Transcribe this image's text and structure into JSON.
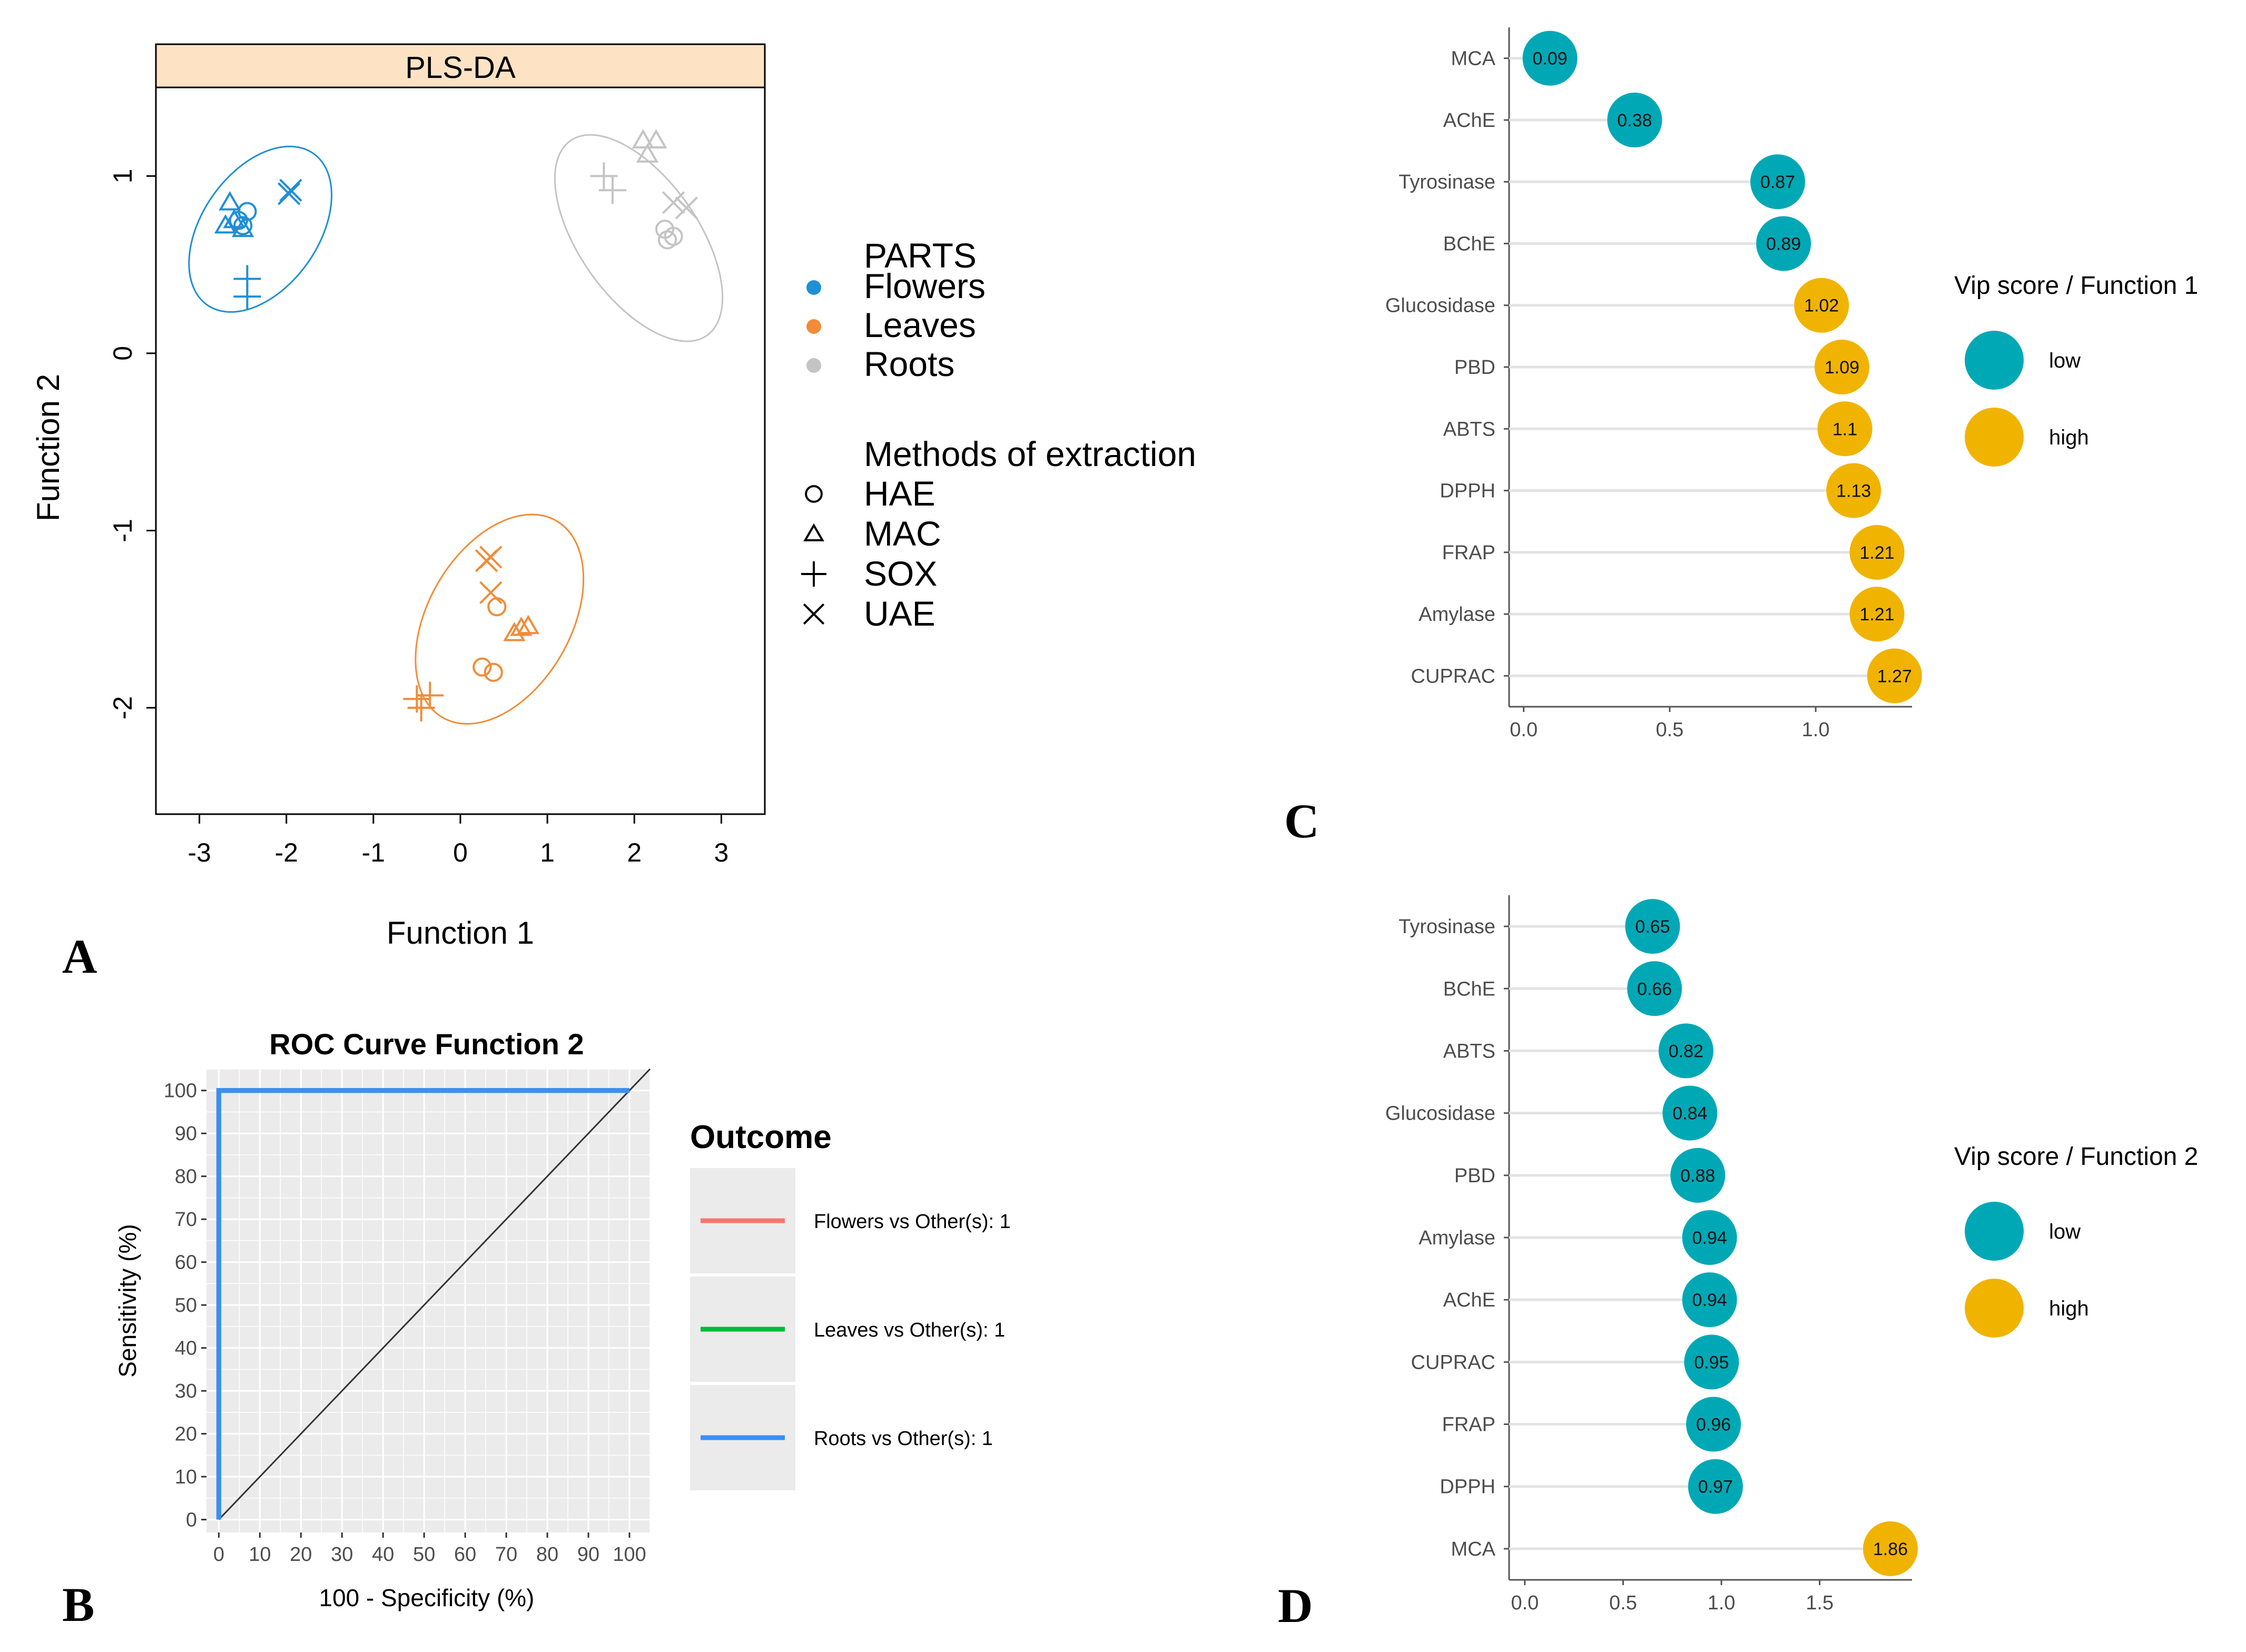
{
  "chart_data": [
    {
      "panel": "A",
      "type": "scatter",
      "title": "PLS-DA",
      "xlabel": "Function 1",
      "ylabel": "Function 2",
      "xlim": [
        -3.5,
        3.5
      ],
      "ylim": [
        -2.6,
        1.5
      ],
      "xticks": [
        -3,
        -2,
        -1,
        0,
        1,
        2,
        3
      ],
      "yticks": [
        -2,
        -1,
        0,
        1
      ],
      "legend_parts_title": "PARTS",
      "legend_methods_title": "Methods of extraction",
      "groups": [
        {
          "name": "Flowers",
          "color": "#1f8fd6"
        },
        {
          "name": "Leaves",
          "color": "#f28c38"
        },
        {
          "name": "Roots",
          "color": "#c4c4c4"
        }
      ],
      "methods": [
        {
          "name": "HAE",
          "symbol": "circle"
        },
        {
          "name": "MAC",
          "symbol": "triangle"
        },
        {
          "name": "SOX",
          "symbol": "plus"
        },
        {
          "name": "UAE",
          "symbol": "cross"
        }
      ],
      "ellipses": [
        {
          "group": "Flowers",
          "center": [
            -2.3,
            0.7
          ],
          "rx": 0.7,
          "ry": 0.44,
          "angle_deg": 55
        },
        {
          "group": "Leaves",
          "center": [
            0.45,
            -1.5
          ],
          "rx": 0.86,
          "ry": 0.54,
          "angle_deg": 60
        },
        {
          "group": "Roots",
          "center": [
            2.05,
            0.65
          ],
          "rx": 0.9,
          "ry": 0.45,
          "angle_deg": -55
        }
      ],
      "points": [
        {
          "group": "Flowers",
          "method": "HAE",
          "x": -2.45,
          "y": 0.8
        },
        {
          "group": "Flowers",
          "method": "HAE",
          "x": -2.55,
          "y": 0.75
        },
        {
          "group": "Flowers",
          "method": "HAE",
          "x": -2.5,
          "y": 0.72
        },
        {
          "group": "Flowers",
          "method": "MAC",
          "x": -2.65,
          "y": 0.85
        },
        {
          "group": "Flowers",
          "method": "MAC",
          "x": -2.7,
          "y": 0.72
        },
        {
          "group": "Flowers",
          "method": "MAC",
          "x": -2.5,
          "y": 0.7
        },
        {
          "group": "Flowers",
          "method": "MAC",
          "x": -2.6,
          "y": 0.75
        },
        {
          "group": "Flowers",
          "method": "SOX",
          "x": -2.45,
          "y": 0.42
        },
        {
          "group": "Flowers",
          "method": "SOX",
          "x": -2.45,
          "y": 0.32
        },
        {
          "group": "Flowers",
          "method": "UAE",
          "x": -1.95,
          "y": 0.92
        },
        {
          "group": "Flowers",
          "method": "UAE",
          "x": -1.97,
          "y": 0.9
        },
        {
          "group": "Leaves",
          "method": "UAE",
          "x": 0.35,
          "y": -1.15
        },
        {
          "group": "Leaves",
          "method": "UAE",
          "x": 0.3,
          "y": -1.17
        },
        {
          "group": "Leaves",
          "method": "UAE",
          "x": 0.35,
          "y": -1.35
        },
        {
          "group": "Leaves",
          "method": "HAE",
          "x": 0.42,
          "y": -1.43
        },
        {
          "group": "Leaves",
          "method": "HAE",
          "x": 0.25,
          "y": -1.77
        },
        {
          "group": "Leaves",
          "method": "HAE",
          "x": 0.38,
          "y": -1.8
        },
        {
          "group": "Leaves",
          "method": "MAC",
          "x": 0.7,
          "y": -1.55
        },
        {
          "group": "Leaves",
          "method": "MAC",
          "x": 0.78,
          "y": -1.54
        },
        {
          "group": "Leaves",
          "method": "MAC",
          "x": 0.62,
          "y": -1.58
        },
        {
          "group": "Leaves",
          "method": "SOX",
          "x": -0.5,
          "y": -1.95
        },
        {
          "group": "Leaves",
          "method": "SOX",
          "x": -0.35,
          "y": -1.93
        },
        {
          "group": "Leaves",
          "method": "SOX",
          "x": -0.45,
          "y": -2.0
        },
        {
          "group": "Roots",
          "method": "MAC",
          "x": 2.1,
          "y": 1.2
        },
        {
          "group": "Roots",
          "method": "MAC",
          "x": 2.25,
          "y": 1.2
        },
        {
          "group": "Roots",
          "method": "MAC",
          "x": 2.15,
          "y": 1.12
        },
        {
          "group": "Roots",
          "method": "SOX",
          "x": 1.65,
          "y": 1.0
        },
        {
          "group": "Roots",
          "method": "SOX",
          "x": 1.75,
          "y": 0.92
        },
        {
          "group": "Roots",
          "method": "UAE",
          "x": 2.45,
          "y": 0.85
        },
        {
          "group": "Roots",
          "method": "UAE",
          "x": 2.6,
          "y": 0.82
        },
        {
          "group": "Roots",
          "method": "HAE",
          "x": 2.35,
          "y": 0.7
        },
        {
          "group": "Roots",
          "method": "HAE",
          "x": 2.38,
          "y": 0.64
        },
        {
          "group": "Roots",
          "method": "HAE",
          "x": 2.45,
          "y": 0.66
        }
      ]
    },
    {
      "panel": "B",
      "type": "line",
      "title": "ROC Curve Function 2",
      "xlabel": "100 - Specificity (%)",
      "ylabel": "Sensitivity (%)",
      "xlim": [
        -3,
        105
      ],
      "ylim": [
        -3,
        105
      ],
      "xticks": [
        0,
        10,
        20,
        30,
        40,
        50,
        60,
        70,
        80,
        90,
        100
      ],
      "yticks": [
        0,
        10,
        20,
        30,
        40,
        50,
        60,
        70,
        80,
        90,
        100
      ],
      "legend_title": "Outcome",
      "reference_line": [
        [
          0,
          0
        ],
        [
          105,
          105
        ]
      ],
      "series": [
        {
          "name": "Flowers vs Other(s): 1",
          "color": "#f8766d",
          "x": [
            0,
            0,
            100
          ],
          "y": [
            0,
            100,
            100
          ]
        },
        {
          "name": "Leaves vs Other(s): 1",
          "color": "#00ba38",
          "x": [
            0,
            0,
            100
          ],
          "y": [
            0,
            100,
            100
          ]
        },
        {
          "name": "Roots vs Other(s): 1",
          "color": "#3a8ef6",
          "x": [
            0,
            0,
            100
          ],
          "y": [
            0,
            100,
            100
          ]
        }
      ]
    },
    {
      "panel": "C",
      "type": "lollipop",
      "legend_title": "Vip score / Function 1",
      "legend_items": [
        {
          "label": "low",
          "color": "#00a8b5"
        },
        {
          "label": "high",
          "color": "#f0b400"
        }
      ],
      "xlim": [
        -0.05,
        1.33
      ],
      "xticks": [
        "0.0",
        "0.5",
        "1.0"
      ],
      "xtick_values": [
        0,
        0.5,
        1.0
      ],
      "categories": [
        "MCA",
        "AChE",
        "Tyrosinase",
        "BChE",
        "Glucosidase",
        "PBD",
        "ABTS",
        "DPPH",
        "FRAP",
        "Amylase",
        "CUPRAC"
      ],
      "values": [
        0.09,
        0.38,
        0.87,
        0.89,
        1.02,
        1.09,
        1.1,
        1.13,
        1.21,
        1.21,
        1.27
      ],
      "value_labels": [
        "0.09",
        "0.38",
        "0.87",
        "0.89",
        "1.02",
        "1.09",
        "1.1",
        "1.13",
        "1.21",
        "1.21",
        "1.27"
      ],
      "levels": [
        "low",
        "low",
        "low",
        "low",
        "high",
        "high",
        "high",
        "high",
        "high",
        "high",
        "high"
      ]
    },
    {
      "panel": "D",
      "type": "lollipop",
      "legend_title": "Vip score / Function 2",
      "legend_items": [
        {
          "label": "low",
          "color": "#00a8b5"
        },
        {
          "label": "high",
          "color": "#f0b400"
        }
      ],
      "xlim": [
        -0.08,
        1.97
      ],
      "xticks": [
        "0.0",
        "0.5",
        "1.0",
        "1.5"
      ],
      "xtick_values": [
        0,
        0.5,
        1.0,
        1.5
      ],
      "categories": [
        "Tyrosinase",
        "BChE",
        "ABTS",
        "Glucosidase",
        "PBD",
        "Amylase",
        "AChE",
        "CUPRAC",
        "FRAP",
        "DPPH",
        "MCA"
      ],
      "values": [
        0.65,
        0.66,
        0.82,
        0.84,
        0.88,
        0.94,
        0.94,
        0.95,
        0.96,
        0.97,
        1.86
      ],
      "value_labels": [
        "0.65",
        "0.66",
        "0.82",
        "0.84",
        "0.88",
        "0.94",
        "0.94",
        "0.95",
        "0.96",
        "0.97",
        "1.86"
      ],
      "levels": [
        "low",
        "low",
        "low",
        "low",
        "low",
        "low",
        "low",
        "low",
        "low",
        "low",
        "high"
      ]
    }
  ],
  "panel_labels": [
    "A",
    "B",
    "C",
    "D"
  ]
}
